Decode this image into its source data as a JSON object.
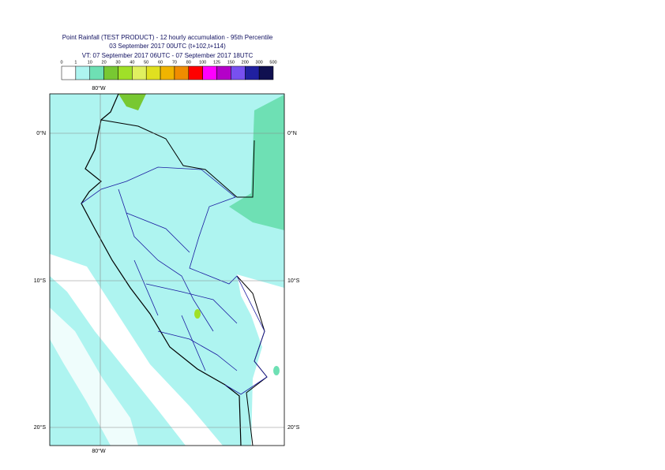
{
  "header": {
    "title_lines": [
      "Point Rainfall (TEST PRODUCT) - 12 hourly accumulation - 95th Percentile",
      "03 September 2017 00UTC (t+102,t+114)",
      "VT: 07 September 2017 06UTC - 07 September 2017 18UTC"
    ]
  },
  "legend": {
    "thresholds": [
      0,
      1,
      10,
      20,
      30,
      40,
      50,
      60,
      70,
      80,
      100,
      125,
      150,
      200,
      300,
      500
    ],
    "colors": [
      "#ffffff",
      "#aef4f0",
      "#6ee0b4",
      "#78c832",
      "#a0e028",
      "#e0f060",
      "#e0e020",
      "#f0b400",
      "#f08c00",
      "#ff0000",
      "#ff00ff",
      "#b400c8",
      "#7850f0",
      "#2020a0",
      "#101050"
    ]
  },
  "map": {
    "lon_labels": [
      "80°W"
    ],
    "lat_labels": [
      "0°N",
      "10°S",
      "20°S"
    ]
  }
}
